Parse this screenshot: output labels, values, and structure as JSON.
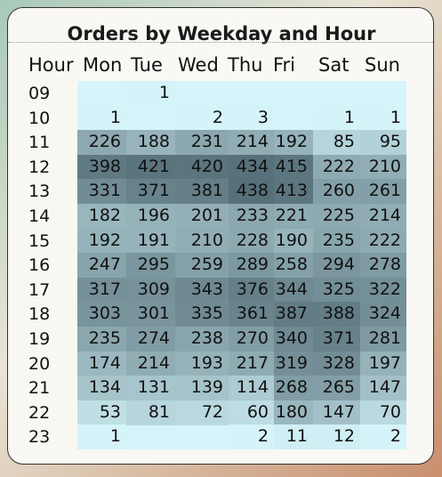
{
  "chart_data": {
    "type": "heatmap",
    "title": "Orders by Weekday and Hour",
    "row_header": "Hour",
    "columns": [
      "Mon",
      "Tue",
      "Wed",
      "Thu",
      "Fri",
      "Sat",
      "Sun"
    ],
    "rows": [
      "09",
      "10",
      "11",
      "12",
      "13",
      "14",
      "15",
      "16",
      "17",
      "18",
      "19",
      "20",
      "21",
      "22",
      "23"
    ],
    "values": [
      [
        null,
        1,
        null,
        null,
        null,
        null,
        null
      ],
      [
        1,
        null,
        2,
        3,
        null,
        1,
        1
      ],
      [
        226,
        188,
        231,
        214,
        192,
        85,
        95
      ],
      [
        398,
        421,
        420,
        434,
        415,
        222,
        210
      ],
      [
        331,
        371,
        381,
        438,
        413,
        260,
        261
      ],
      [
        182,
        196,
        201,
        233,
        221,
        225,
        214
      ],
      [
        192,
        191,
        210,
        228,
        190,
        235,
        222
      ],
      [
        247,
        295,
        259,
        289,
        258,
        294,
        278
      ],
      [
        317,
        309,
        343,
        376,
        344,
        325,
        322
      ],
      [
        303,
        301,
        335,
        361,
        387,
        388,
        324
      ],
      [
        235,
        274,
        238,
        270,
        340,
        371,
        281
      ],
      [
        174,
        214,
        193,
        217,
        319,
        328,
        197
      ],
      [
        134,
        131,
        139,
        114,
        268,
        265,
        147
      ],
      [
        53,
        81,
        72,
        60,
        180,
        147,
        70
      ],
      [
        1,
        null,
        null,
        2,
        11,
        12,
        2
      ]
    ],
    "color_low": "#d5f5fb",
    "color_high": "#567079"
  }
}
